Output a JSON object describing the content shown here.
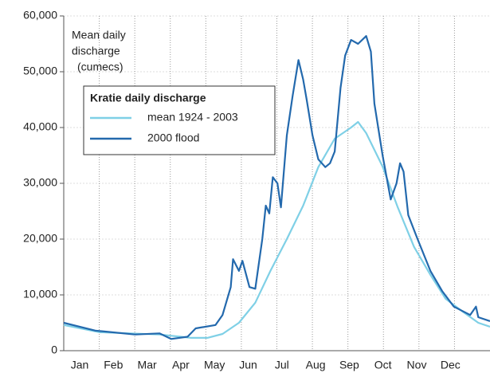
{
  "chart_data": {
    "type": "line",
    "y_label_lines": [
      "Mean daily",
      "discharge",
      "(cumecs)"
    ],
    "legend_title": "Kratie daily discharge",
    "legend": "upper left",
    "categories": [
      "Jan",
      "Feb",
      "Mar",
      "Apr",
      "May",
      "Jun",
      "Jul",
      "Aug",
      "Sep",
      "Oct",
      "Nov",
      "Dec"
    ],
    "xlim": [
      0,
      365
    ],
    "ylim": [
      0,
      60000
    ],
    "yticks": [
      0,
      {
        "value": 10000,
        "label": "10,000"
      },
      {
        "value": 20000,
        "label": "20,000"
      },
      {
        "value": 30000,
        "label": "30,000"
      },
      {
        "value": 40000,
        "label": "40,000"
      },
      {
        "value": 50000,
        "label": "50,000"
      },
      {
        "value": 60000,
        "label": "60,000"
      }
    ],
    "grid": true,
    "series": [
      {
        "name": "mean 1924 - 2003",
        "color": "#7fd0e6",
        "x": [
          0,
          31,
          82,
          109,
          123,
          136,
          150,
          164,
          177,
          191,
          205,
          218,
          232,
          246,
          252,
          259,
          273,
          286,
          300,
          314,
          327,
          341,
          355,
          365
        ],
        "values": [
          4600,
          3300,
          2900,
          2300,
          2300,
          3000,
          5000,
          8600,
          14300,
          20000,
          26000,
          32900,
          38000,
          40000,
          41000,
          39000,
          33000,
          25700,
          18600,
          13600,
          9300,
          7100,
          5000,
          4300
        ]
      },
      {
        "name": "2000 flood",
        "color": "#2369ad",
        "x": [
          0,
          27,
          61,
          82,
          92,
          106,
          113,
          130,
          136,
          143,
          145,
          150,
          153,
          159,
          164,
          170,
          173,
          176,
          179,
          183,
          186,
          191,
          196,
          201,
          205,
          208,
          213,
          218,
          224,
          228,
          232,
          237,
          241,
          246,
          252,
          259,
          263,
          266,
          273,
          280,
          285,
          288,
          291,
          295,
          303,
          314,
          324,
          334,
          348,
          353,
          355,
          365
        ],
        "values": [
          5000,
          3600,
          2900,
          3100,
          2100,
          2500,
          4000,
          4600,
          6400,
          11400,
          16400,
          14300,
          16100,
          11400,
          11100,
          20000,
          26000,
          24600,
          31100,
          30000,
          25700,
          38600,
          45700,
          52100,
          48600,
          45000,
          38600,
          34300,
          32900,
          33600,
          35700,
          47100,
          52900,
          55700,
          55000,
          56400,
          53600,
          44300,
          35000,
          27100,
          30000,
          33600,
          32100,
          24300,
          20000,
          14300,
          10700,
          7900,
          6400,
          7900,
          6000,
          5300
        ]
      }
    ]
  }
}
